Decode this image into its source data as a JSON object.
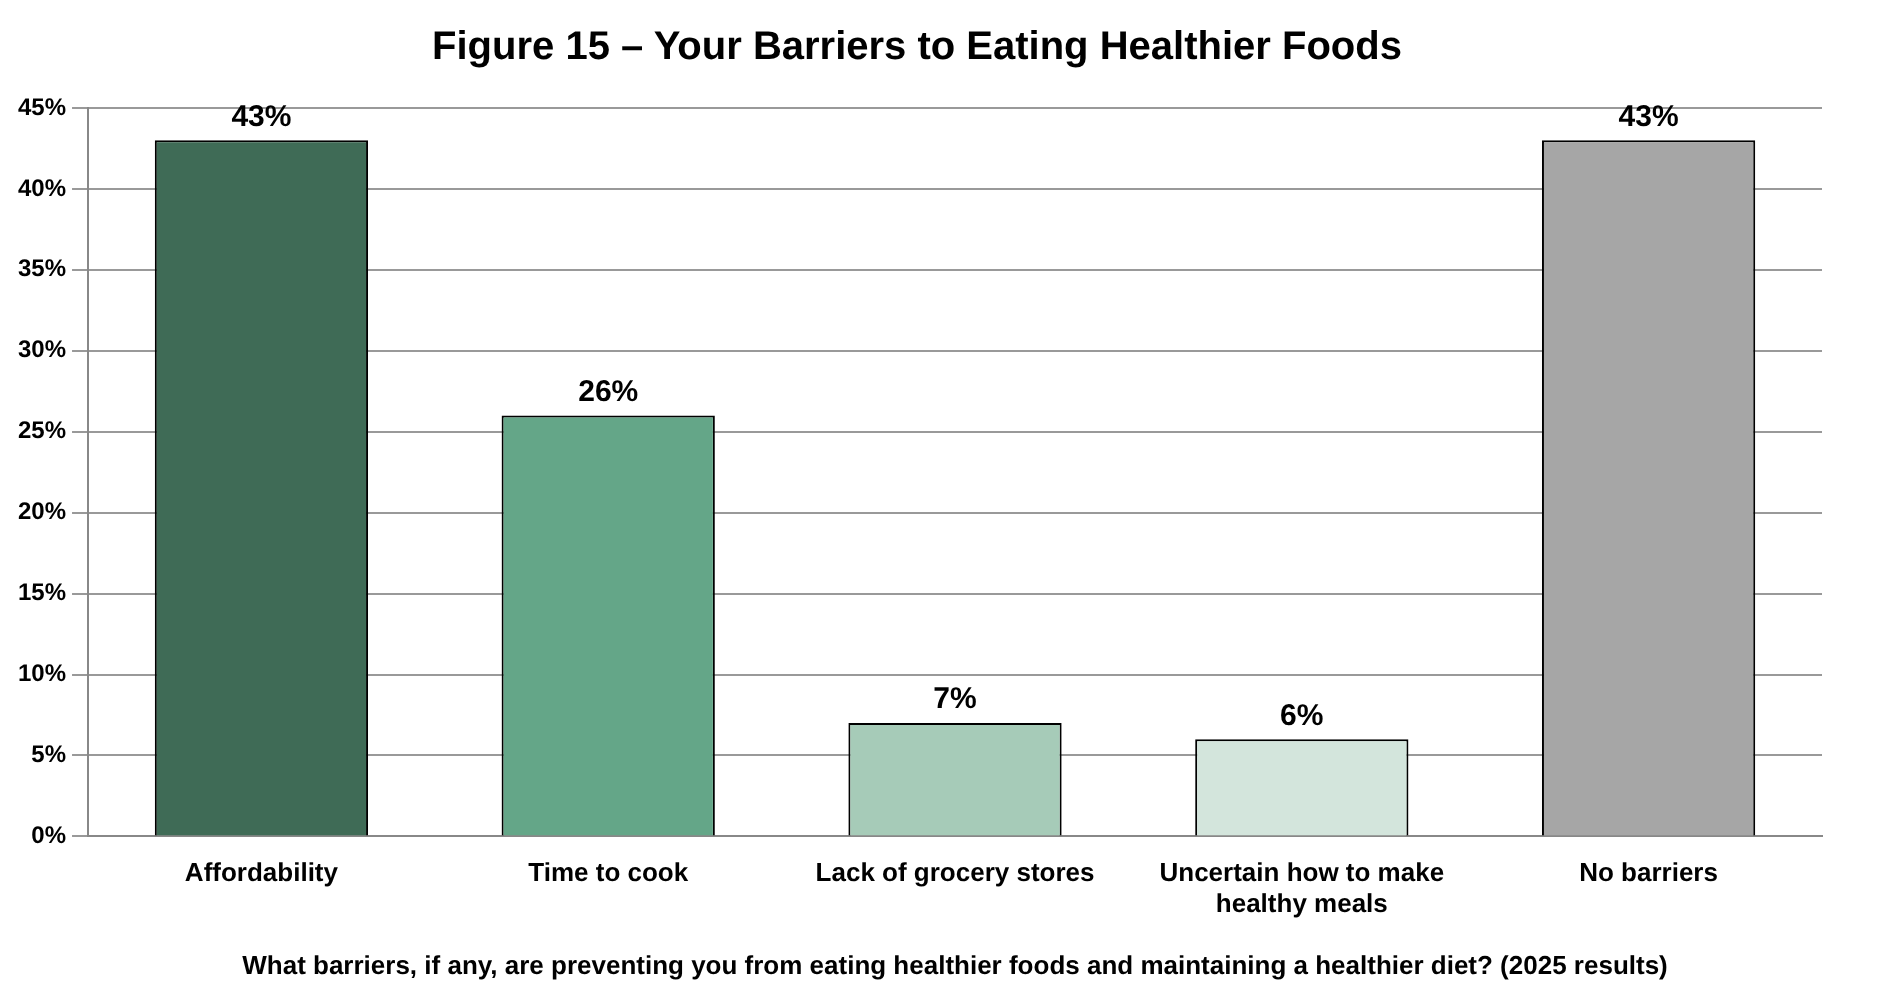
{
  "chart_data": {
    "type": "bar",
    "title": "Figure 15 – Your Barriers to Eating Healthier Foods",
    "xlabel": "What barriers, if any, are preventing you from eating healthier foods and maintaining a healthier diet? (2025 results)",
    "categories": [
      "Affordability",
      "Time to cook",
      "Lack of grocery stores",
      "Uncertain how to make healthy meals",
      "No barriers"
    ],
    "values": [
      43,
      26,
      7,
      6,
      43
    ],
    "colors": [
      "#3f6b56",
      "#64a688",
      "#a6cbb8",
      "#d3e5dc",
      "#a6a6a6"
    ],
    "value_labels": [
      "43%",
      "26%",
      "7%",
      "6%",
      "43%"
    ],
    "ylim": [
      0,
      45
    ],
    "yticks": [
      {
        "value": 0,
        "label": "0%"
      },
      {
        "value": 5,
        "label": "5%"
      },
      {
        "value": 10,
        "label": "10%"
      },
      {
        "value": 15,
        "label": "15%"
      },
      {
        "value": 20,
        "label": "20%"
      },
      {
        "value": 25,
        "label": "25%"
      },
      {
        "value": 30,
        "label": "30%"
      },
      {
        "value": 35,
        "label": "35%"
      },
      {
        "value": 40,
        "label": "40%"
      },
      {
        "value": 45,
        "label": "45%"
      }
    ],
    "grid": "y",
    "legend": false
  }
}
